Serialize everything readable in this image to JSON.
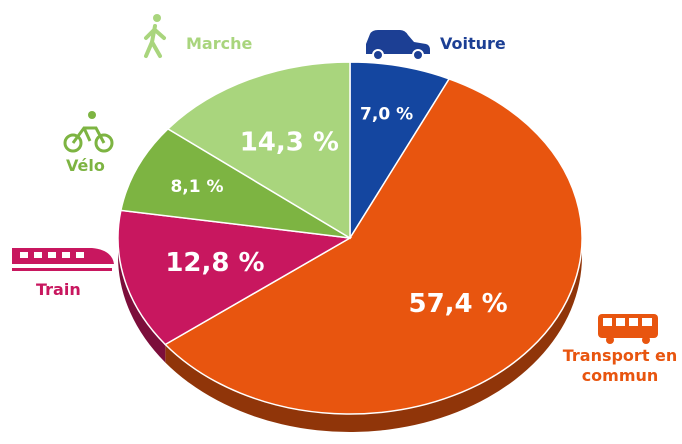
{
  "chart_data": {
    "type": "pie",
    "categories": [
      "Voiture",
      "Transport en commun",
      "Train",
      "Vélo",
      "Marche"
    ],
    "values": [
      7.0,
      57.4,
      12.8,
      8.1,
      14.3
    ],
    "value_labels": [
      "7,0 %",
      "57,4 %",
      "12,8 %",
      "8,1 %",
      "14,3 %"
    ],
    "colors": [
      "#1446a0",
      "#e8550f",
      "#c8175f",
      "#7db442",
      "#a9d57d"
    ]
  }
}
